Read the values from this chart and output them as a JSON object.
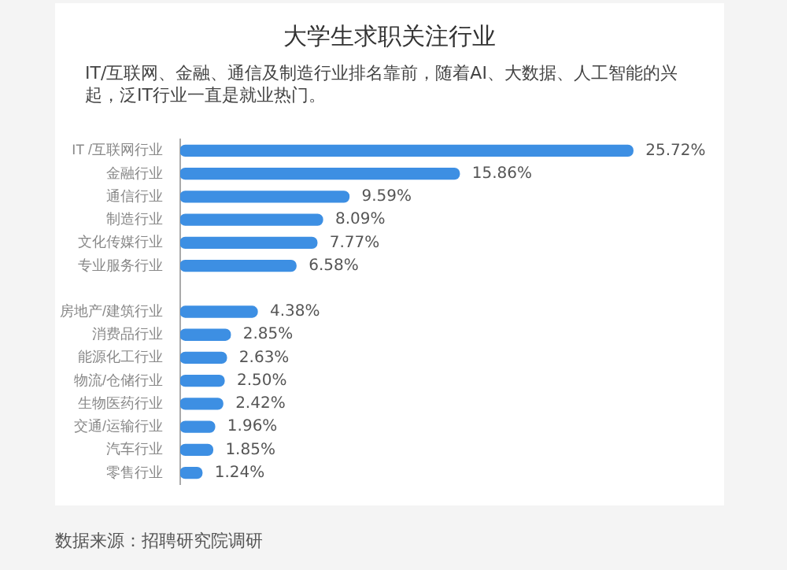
{
  "chart_data": {
    "type": "bar",
    "orientation": "horizontal",
    "title": "大学生求职关注行业",
    "subtitle": "IT/互联网、金融、通信及制造行业排名靠前，随着AI、大数据、人工智能的兴起，泛IT行业一直是就业热门。",
    "categories": [
      "IT /互联网行业",
      "金融行业",
      "通信行业",
      "制造行业",
      "文化传媒行业",
      "专业服务行业",
      null,
      "房地产/建筑行业",
      "消费品行业",
      "能源化工行业",
      "物流/仓储行业",
      "生物医药行业",
      "交通/运输行业",
      "汽车行业",
      "零售行业"
    ],
    "values": [
      25.72,
      15.86,
      9.59,
      8.09,
      7.77,
      6.58,
      null,
      4.38,
      2.85,
      2.63,
      2.5,
      2.42,
      1.96,
      1.85,
      1.24
    ],
    "value_labels": [
      "25.72%",
      "15.86%",
      "9.59%",
      "8.09%",
      "7.77%",
      "6.58%",
      null,
      "4.38%",
      "2.85%",
      "2.63%",
      "2.50%",
      "2.42%",
      "1.96%",
      "1.85%",
      "1.24%"
    ],
    "color": "#3d8fe3",
    "annotations": [
      "数据来源：招聘研究院调研"
    ]
  }
}
